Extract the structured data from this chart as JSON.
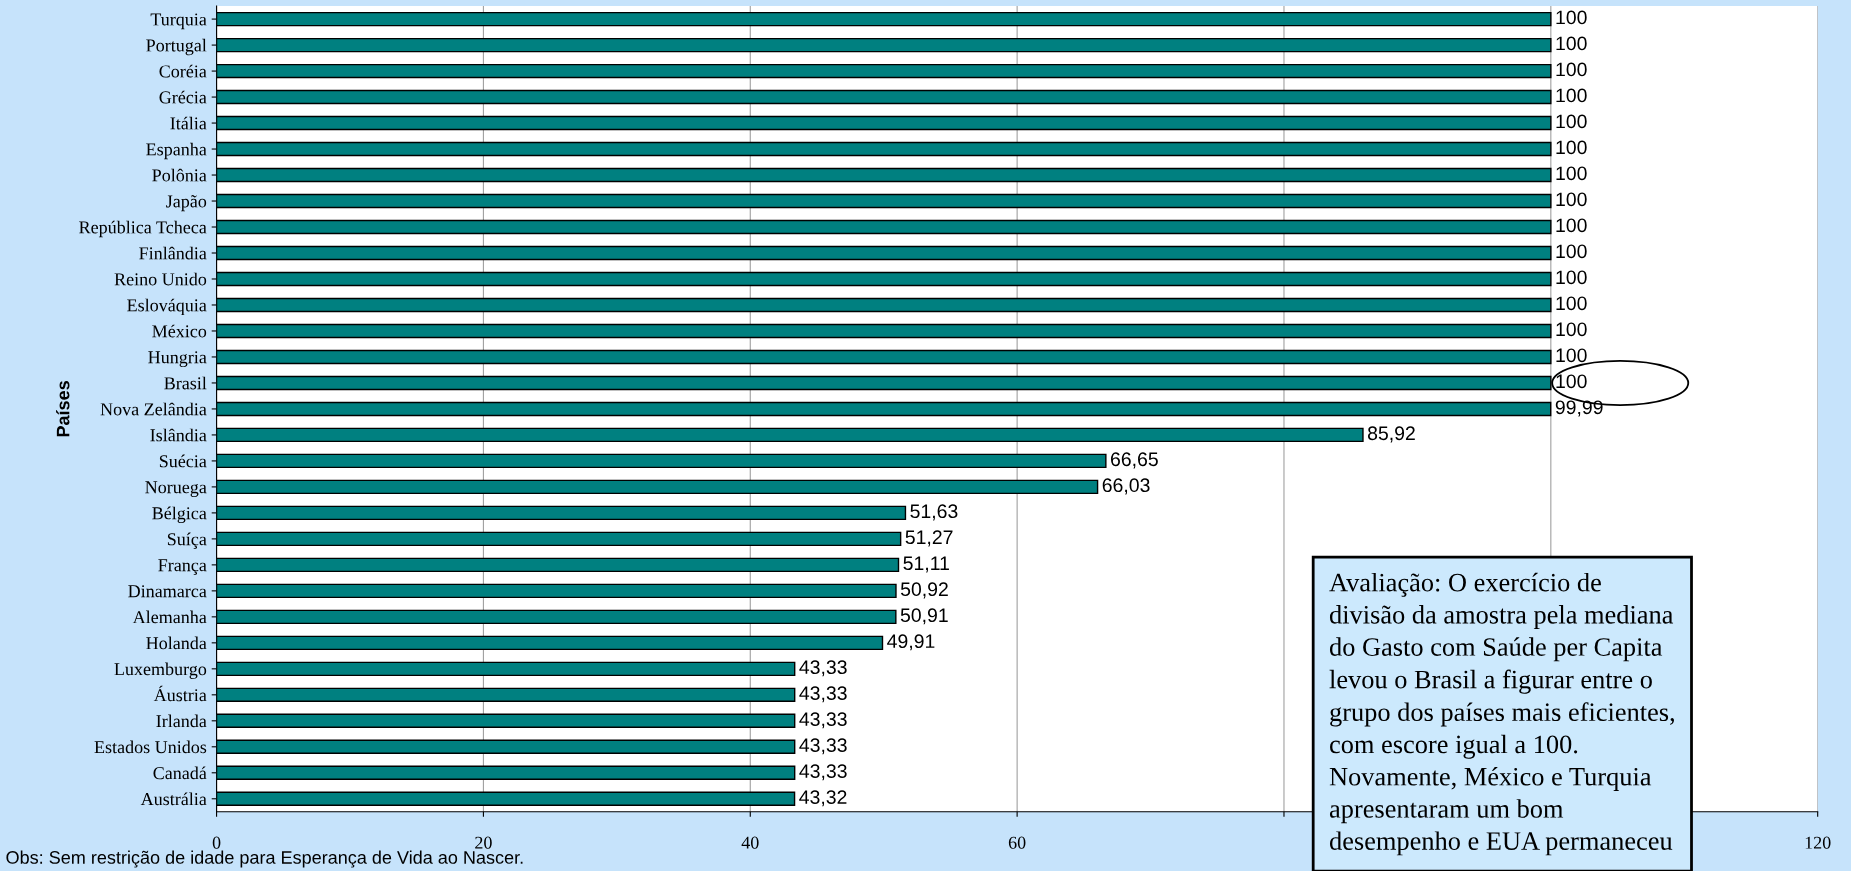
{
  "chart_data": {
    "type": "bar",
    "orientation": "horizontal",
    "ylabel": "Países",
    "categories": [
      "Turquia",
      "Portugal",
      "Coréia",
      "Grécia",
      "Itália",
      "Espanha",
      "Polônia",
      "Japão",
      "República Tcheca",
      "Finlândia",
      "Reino Unido",
      "Eslováquia",
      "México",
      "Hungria",
      "Brasil",
      "Nova Zelândia",
      "Islândia",
      "Suécia",
      "Noruega",
      "Bélgica",
      "Suíça",
      "França",
      "Dinamarca",
      "Alemanha",
      "Holanda",
      "Luxemburgo",
      "Áustria",
      "Irlanda",
      "Estados Unidos",
      "Canadá",
      "Austrália"
    ],
    "values": [
      100,
      100,
      100,
      100,
      100,
      100,
      100,
      100,
      100,
      100,
      100,
      100,
      100,
      100,
      100,
      99.99,
      85.92,
      66.65,
      66.03,
      51.63,
      51.27,
      51.11,
      50.92,
      50.91,
      49.91,
      43.33,
      43.33,
      43.33,
      43.33,
      43.33,
      43.32
    ],
    "value_labels": [
      "100",
      "100",
      "100",
      "100",
      "100",
      "100",
      "100",
      "100",
      "100",
      "100",
      "100",
      "100",
      "100",
      "100",
      "100",
      "99,99",
      "85,92",
      "66,65",
      "66,03",
      "51,63",
      "51,27",
      "51,11",
      "50,92",
      "50,91",
      "49,91",
      "43,33",
      "43,33",
      "43,33",
      "43,33",
      "43,33",
      "43,32"
    ],
    "color": "#008080",
    "xlim": [
      0,
      120
    ],
    "xticks": [
      0,
      20,
      40,
      60,
      {
        "value": 80,
        "label": null
      },
      {
        "value": 100,
        "label": null
      },
      120
    ],
    "grid": "x",
    "legend": false,
    "annotations": [
      "Obs: Sem restrição de idade para Esperança de Vida ao Nascer.",
      "Avaliação: O exercício de\ndivisão da amostra pela mediana\ndo Gasto com Saúde per Capita\nlevou o Brasil a figurar entre o\ngrupo dos países mais eficientes,\ncom escore igual a 100.\nNovamente, México e Turquia\napresentaram um bom\ndesempenho e EUA permaneceu"
    ]
  }
}
